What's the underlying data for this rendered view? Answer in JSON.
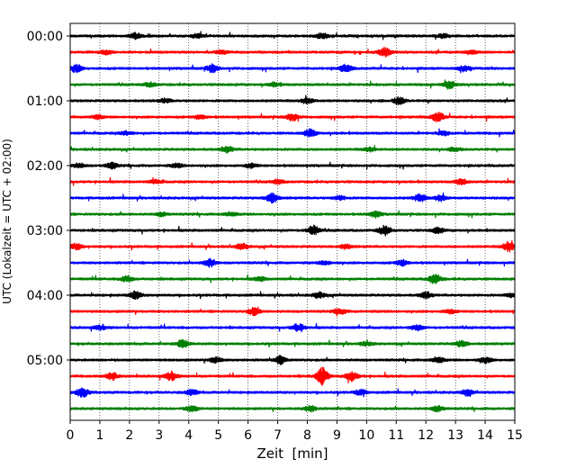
{
  "chart_data": {
    "type": "line",
    "title": "",
    "xlabel": "Zeit  [min]",
    "ylabel": "UTC (Lokalzeit = UTC + 02:00)",
    "xlim": [
      0,
      15
    ],
    "x_ticks": [
      "0",
      "1",
      "2",
      "3",
      "4",
      "5",
      "6",
      "7",
      "8",
      "9",
      "10",
      "11",
      "12",
      "13",
      "14",
      "15"
    ],
    "y_ticks": [
      "00:00",
      "01:00",
      "02:00",
      "03:00",
      "04:00",
      "05:00"
    ],
    "grid": "vertical dotted",
    "trace_interval_minutes": 15,
    "color_cycle": [
      "#000000",
      "#ff0000",
      "#0000ff",
      "#008000"
    ],
    "traces": [
      {
        "start": "00:00",
        "events": [
          [
            2.2,
            3
          ],
          [
            4.3,
            2
          ],
          [
            8.5,
            3
          ],
          [
            12.6,
            2
          ]
        ]
      },
      {
        "start": "00:15",
        "events": [
          [
            1.2,
            2
          ],
          [
            5.1,
            2
          ],
          [
            10.6,
            5
          ],
          [
            13.5,
            2
          ]
        ]
      },
      {
        "start": "00:30",
        "events": [
          [
            0.2,
            4
          ],
          [
            4.8,
            4
          ],
          [
            9.3,
            4
          ],
          [
            13.3,
            3
          ]
        ]
      },
      {
        "start": "00:45",
        "events": [
          [
            2.7,
            2
          ],
          [
            6.9,
            2
          ],
          [
            12.8,
            4
          ]
        ]
      },
      {
        "start": "01:00",
        "events": [
          [
            3.2,
            2
          ],
          [
            8.0,
            3
          ],
          [
            11.1,
            4
          ]
        ]
      },
      {
        "start": "01:15",
        "events": [
          [
            0.9,
            2
          ],
          [
            4.4,
            2
          ],
          [
            7.5,
            4
          ],
          [
            12.4,
            5
          ]
        ]
      },
      {
        "start": "01:30",
        "events": [
          [
            1.9,
            2
          ],
          [
            8.1,
            4
          ],
          [
            12.6,
            2
          ]
        ]
      },
      {
        "start": "01:45",
        "events": [
          [
            5.3,
            3
          ],
          [
            10.1,
            2
          ],
          [
            13.0,
            2
          ]
        ]
      },
      {
        "start": "02:00",
        "events": [
          [
            0.3,
            2
          ],
          [
            1.4,
            3
          ],
          [
            3.6,
            2
          ],
          [
            6.1,
            2
          ]
        ]
      },
      {
        "start": "02:15",
        "events": [
          [
            2.9,
            2
          ],
          [
            7.0,
            2
          ],
          [
            13.2,
            3
          ]
        ]
      },
      {
        "start": "02:30",
        "events": [
          [
            6.8,
            5
          ],
          [
            9.1,
            2
          ],
          [
            11.8,
            4
          ],
          [
            12.5,
            3
          ]
        ]
      },
      {
        "start": "02:45",
        "events": [
          [
            3.1,
            2
          ],
          [
            5.4,
            2
          ],
          [
            10.3,
            3
          ]
        ]
      },
      {
        "start": "03:00",
        "events": [
          [
            8.2,
            5
          ],
          [
            10.6,
            5
          ],
          [
            12.4,
            3
          ]
        ]
      },
      {
        "start": "03:15",
        "events": [
          [
            0.2,
            3
          ],
          [
            5.8,
            3
          ],
          [
            9.3,
            2
          ],
          [
            14.8,
            5
          ]
        ]
      },
      {
        "start": "03:30",
        "events": [
          [
            4.7,
            4
          ],
          [
            8.6,
            2
          ],
          [
            11.2,
            3
          ]
        ]
      },
      {
        "start": "03:45",
        "events": [
          [
            1.9,
            3
          ],
          [
            6.4,
            2
          ],
          [
            12.3,
            5
          ]
        ]
      },
      {
        "start": "04:00",
        "events": [
          [
            2.2,
            4
          ],
          [
            8.4,
            3
          ],
          [
            12.0,
            3
          ],
          [
            14.9,
            2
          ]
        ]
      },
      {
        "start": "04:15",
        "events": [
          [
            6.2,
            4
          ],
          [
            9.1,
            3
          ],
          [
            12.8,
            2
          ]
        ]
      },
      {
        "start": "04:30",
        "events": [
          [
            1.0,
            2
          ],
          [
            7.7,
            4
          ],
          [
            11.7,
            3
          ]
        ]
      },
      {
        "start": "04:45",
        "events": [
          [
            3.8,
            4
          ],
          [
            10.0,
            2
          ],
          [
            13.2,
            3
          ]
        ]
      },
      {
        "start": "05:00",
        "events": [
          [
            4.9,
            3
          ],
          [
            7.1,
            4
          ],
          [
            12.4,
            3
          ],
          [
            14.0,
            3
          ]
        ]
      },
      {
        "start": "05:15",
        "events": [
          [
            1.4,
            4
          ],
          [
            3.4,
            4
          ],
          [
            8.5,
            9
          ],
          [
            9.5,
            5
          ]
        ]
      },
      {
        "start": "05:30",
        "events": [
          [
            0.4,
            5
          ],
          [
            4.1,
            3
          ],
          [
            9.8,
            3
          ],
          [
            13.4,
            3
          ]
        ]
      },
      {
        "start": "05:45",
        "events": [
          [
            4.1,
            3
          ],
          [
            8.1,
            3
          ],
          [
            12.4,
            3
          ]
        ]
      }
    ]
  }
}
